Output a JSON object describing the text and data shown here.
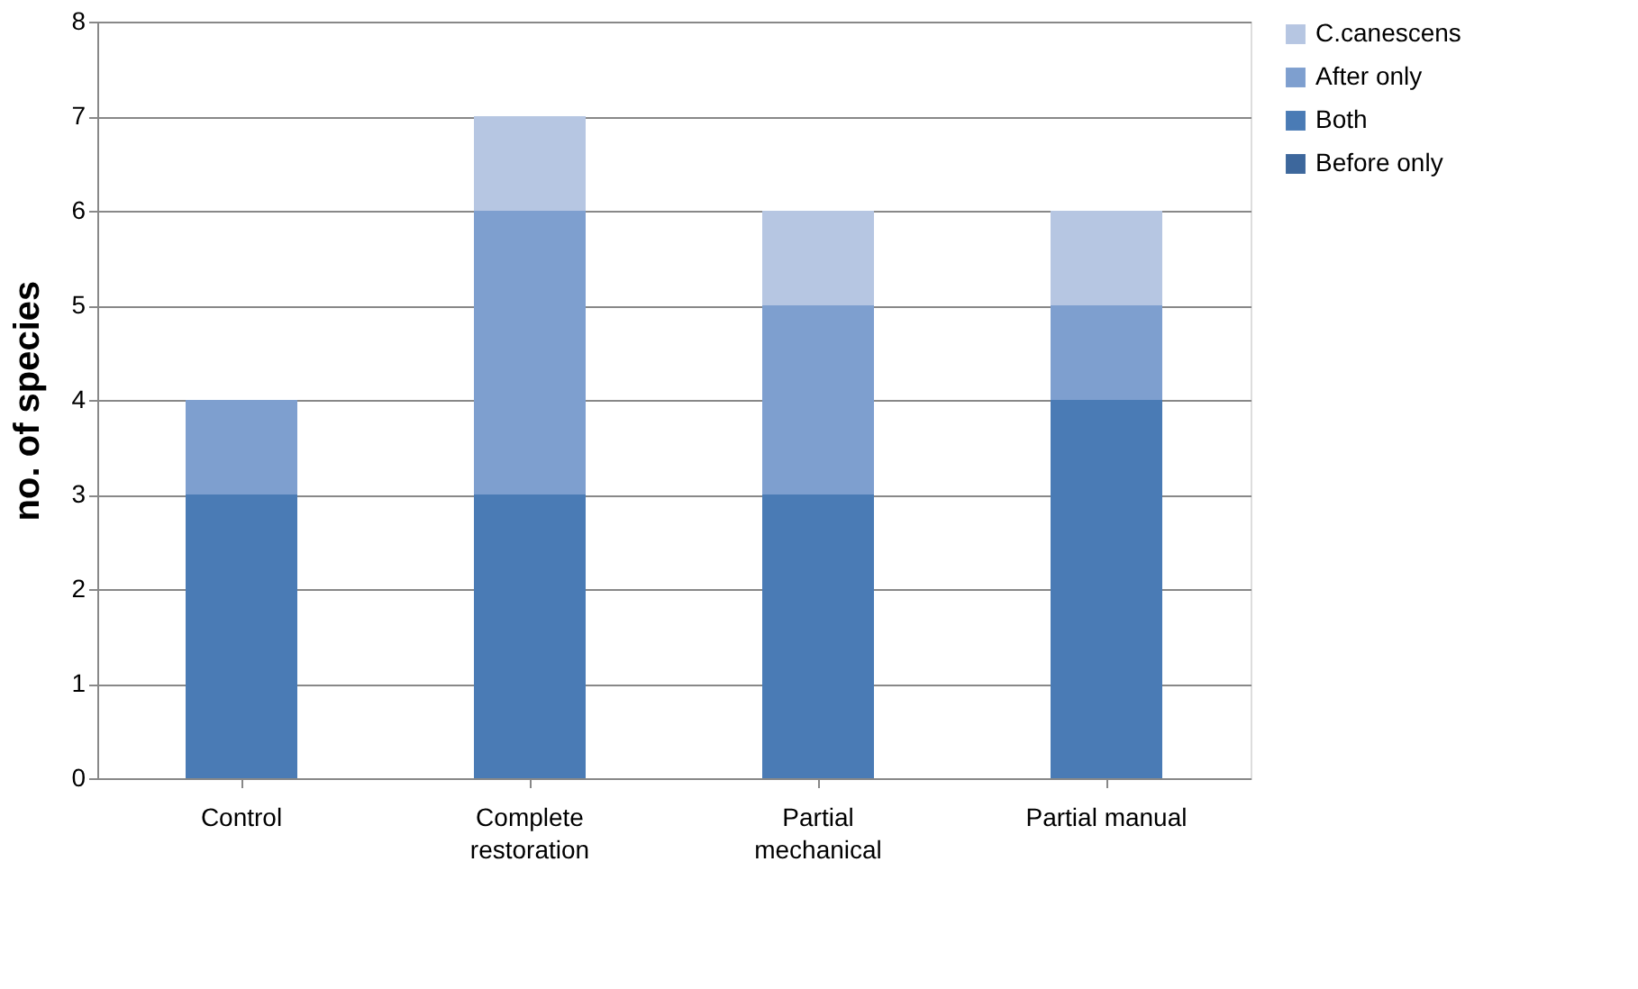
{
  "chart_data": {
    "type": "bar",
    "stacked": true,
    "ylabel": "no. of species",
    "categories": [
      "Control",
      "Complete restoration",
      "Partial mechanical",
      "Partial manual"
    ],
    "series": [
      {
        "name": "Before only",
        "color": "#3d679c",
        "values": [
          0,
          0,
          0,
          0
        ]
      },
      {
        "name": "Both",
        "color": "#4a7bb5",
        "values": [
          3,
          3,
          3,
          4
        ]
      },
      {
        "name": "After only",
        "color": "#7e9fcf",
        "values": [
          1,
          3,
          2,
          1
        ]
      },
      {
        "name": "C.canescens",
        "color": "#b6c6e2",
        "values": [
          0,
          1,
          1,
          1
        ]
      }
    ],
    "ylim": [
      0,
      8
    ],
    "yticks": [
      0,
      1,
      2,
      3,
      4,
      5,
      6,
      7,
      8
    ],
    "grid": "y",
    "legend": "right"
  }
}
